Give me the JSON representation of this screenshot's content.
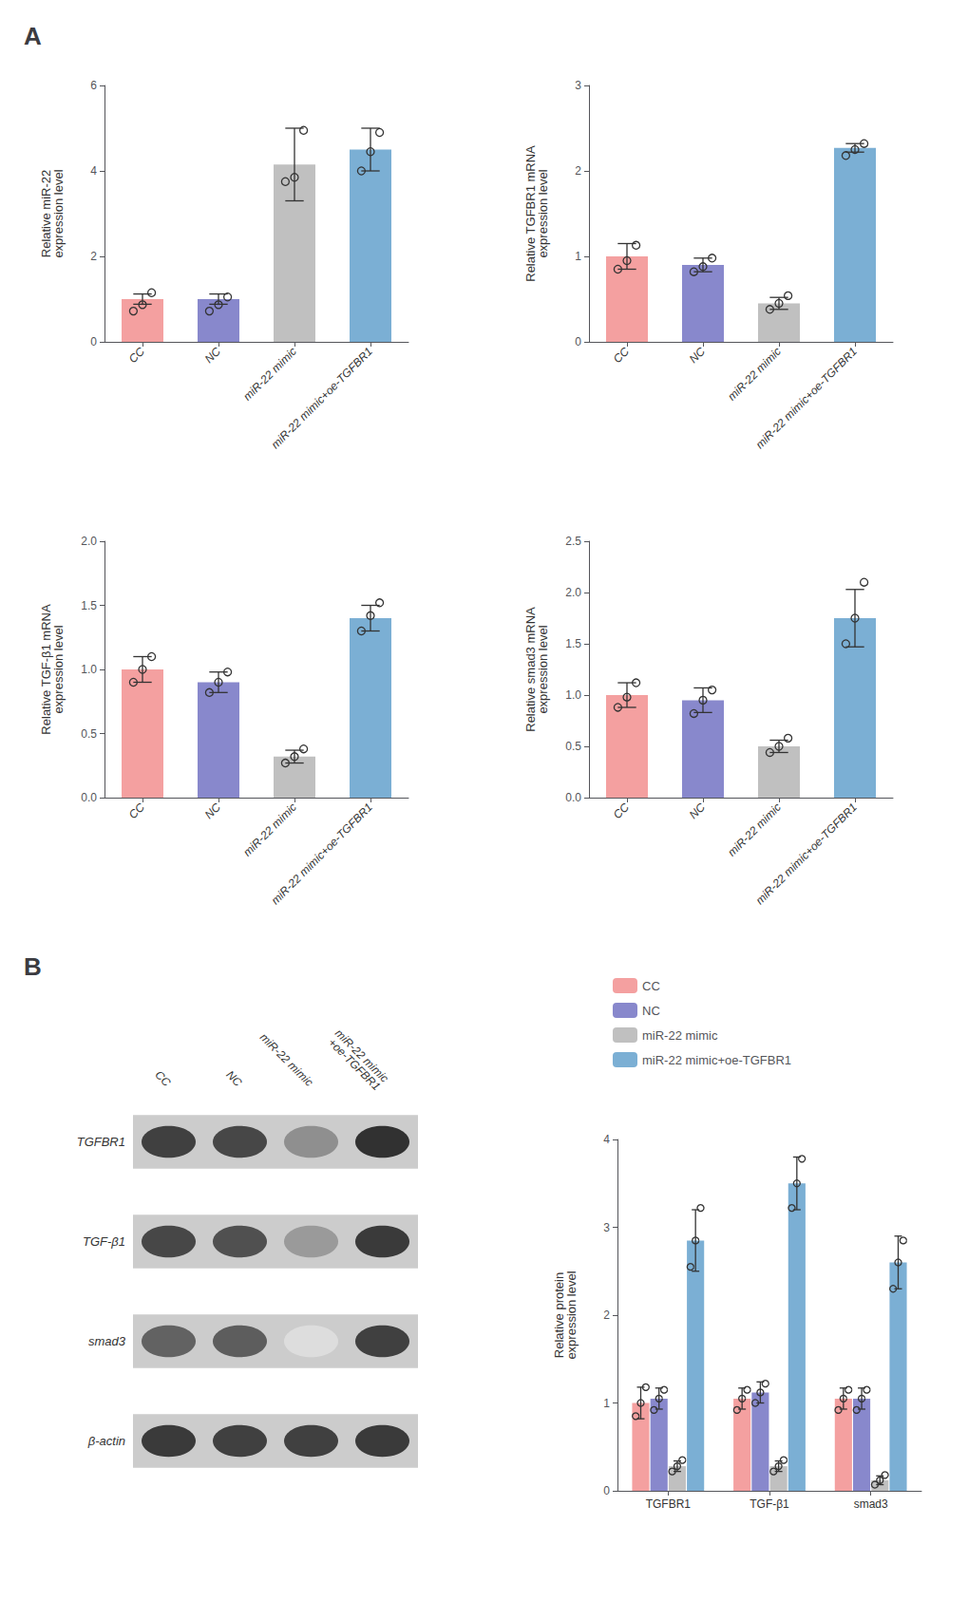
{
  "chart_data": [
    {
      "type": "bar",
      "title": "A",
      "categories": [
        "CC",
        "NC",
        "miR-22 mimic",
        "miR-22 mimic+oe-TGFBR1"
      ],
      "values": [
        1.0,
        1.0,
        4.15,
        4.5
      ],
      "colors": [
        "#F4A0A0",
        "#8888CC",
        "#C0C0C0",
        "#7BAFD4"
      ],
      "errors": [
        0.12,
        0.12,
        0.85,
        0.5
      ],
      "points": [
        [
          0.72,
          0.87,
          1.15
        ],
        [
          0.72,
          0.87,
          1.05
        ],
        [
          3.75,
          3.85,
          4.95
        ],
        [
          4.0,
          4.45,
          4.9
        ]
      ],
      "ylabel": "Relative miR-22\nexpression level",
      "ylim": [
        0,
        6
      ],
      "yticks": [
        0,
        2,
        4,
        6
      ],
      "grid": false
    },
    {
      "type": "bar",
      "categories": [
        "CC",
        "NC",
        "miR-22 mimic",
        "miR-22 mimic+oe-TGFBR1"
      ],
      "values": [
        1.0,
        0.9,
        0.45,
        2.27
      ],
      "colors": [
        "#F4A0A0",
        "#8888CC",
        "#C0C0C0",
        "#7BAFD4"
      ],
      "errors": [
        0.15,
        0.08,
        0.07,
        0.05
      ],
      "points": [
        [
          0.85,
          0.95,
          1.13
        ],
        [
          0.82,
          0.88,
          0.98
        ],
        [
          0.38,
          0.45,
          0.54
        ],
        [
          2.18,
          2.25,
          2.32
        ]
      ],
      "ylabel": "Relative TGFBR1 mRNA\nexpression level",
      "ylim": [
        0,
        3
      ],
      "yticks": [
        0,
        1,
        2,
        3
      ],
      "grid": false
    },
    {
      "type": "bar",
      "categories": [
        "CC",
        "NC",
        "miR-22 mimic",
        "miR-22 mimic+oe-TGFBR1"
      ],
      "values": [
        1.0,
        0.9,
        0.32,
        1.4
      ],
      "colors": [
        "#F4A0A0",
        "#8888CC",
        "#C0C0C0",
        "#7BAFD4"
      ],
      "errors": [
        0.1,
        0.08,
        0.05,
        0.1
      ],
      "points": [
        [
          0.9,
          1.0,
          1.1
        ],
        [
          0.82,
          0.9,
          0.98
        ],
        [
          0.27,
          0.32,
          0.38
        ],
        [
          1.3,
          1.42,
          1.52
        ]
      ],
      "ylabel": "Relative TGF-β1 mRNA\nexpression level",
      "ylim": [
        0,
        2.0
      ],
      "yticks": [
        {
          "value": 0,
          "label": "0.0"
        },
        0.5,
        {
          "value": 1,
          "label": "1.0"
        },
        1.5,
        {
          "value": 2,
          "label": "2.0"
        }
      ],
      "grid": false
    },
    {
      "type": "bar",
      "categories": [
        "CC",
        "NC",
        "miR-22 mimic",
        "miR-22 mimic+oe-TGFBR1"
      ],
      "values": [
        1.0,
        0.95,
        0.5,
        1.75
      ],
      "colors": [
        "#F4A0A0",
        "#8888CC",
        "#C0C0C0",
        "#7BAFD4"
      ],
      "errors": [
        0.12,
        0.12,
        0.06,
        0.28
      ],
      "points": [
        [
          0.88,
          0.98,
          1.12
        ],
        [
          0.82,
          0.95,
          1.05
        ],
        [
          0.44,
          0.5,
          0.58
        ],
        [
          1.5,
          1.75,
          2.1
        ]
      ],
      "ylabel": "Relative smad3 mRNA\nexpression level",
      "ylim": [
        0,
        2.5
      ],
      "yticks": [
        {
          "value": 0,
          "label": "0.0"
        },
        0.5,
        {
          "value": 1,
          "label": "1.0"
        },
        1.5,
        {
          "value": 2,
          "label": "2.0"
        },
        2.5
      ],
      "grid": false
    },
    {
      "type": "heatmap",
      "title": "B",
      "categories": [
        "CC",
        "NC",
        "miR-22 mimic",
        "miR-22 mimic\n+oe-TGFBR1"
      ],
      "rows": [
        "TGFBR1",
        "TGF-β1",
        "smad3",
        "β-actin"
      ],
      "values": [
        [
          0.85,
          0.82,
          0.5,
          0.92
        ],
        [
          0.82,
          0.78,
          0.45,
          0.88
        ],
        [
          0.7,
          0.72,
          0.15,
          0.85
        ],
        [
          0.88,
          0.85,
          0.85,
          0.88
        ]
      ]
    },
    {
      "type": "bar",
      "categories": [
        "TGFBR1",
        "TGF-β1",
        "smad3"
      ],
      "series": [
        {
          "name": "CC",
          "color": "#F4A0A0",
          "values": [
            1.0,
            1.05,
            1.05
          ],
          "errors": [
            0.18,
            0.12,
            0.12
          ],
          "points": [
            [
              0.85,
              1.0,
              1.18
            ],
            [
              0.92,
              1.05,
              1.15
            ],
            [
              0.92,
              1.05,
              1.15
            ]
          ]
        },
        {
          "name": "NC",
          "color": "#8888CC",
          "values": [
            1.05,
            1.12,
            1.05
          ],
          "errors": [
            0.12,
            0.12,
            0.12
          ],
          "points": [
            [
              0.92,
              1.05,
              1.15
            ],
            [
              1.0,
              1.12,
              1.22
            ],
            [
              0.92,
              1.05,
              1.15
            ]
          ]
        },
        {
          "name": "miR-22 mimic",
          "color": "#C0C0C0",
          "values": [
            0.28,
            0.28,
            0.12
          ],
          "errors": [
            0.06,
            0.06,
            0.05
          ],
          "points": [
            [
              0.22,
              0.28,
              0.35
            ],
            [
              0.22,
              0.28,
              0.35
            ],
            [
              0.07,
              0.12,
              0.18
            ]
          ]
        },
        {
          "name": "miR-22 mimic+oe-TGFBR1",
          "color": "#7BAFD4",
          "values": [
            2.85,
            3.5,
            2.6
          ],
          "errors": [
            0.35,
            0.3,
            0.3
          ],
          "points": [
            [
              2.55,
              2.85,
              3.22
            ],
            [
              3.22,
              3.5,
              3.78
            ],
            [
              2.3,
              2.6,
              2.85
            ]
          ]
        }
      ],
      "ylabel": "Relative protein\nexpression level",
      "ylim": [
        0,
        4
      ],
      "yticks": [
        0,
        1,
        2,
        3,
        4
      ],
      "grid": false,
      "legend": "upper left"
    }
  ]
}
